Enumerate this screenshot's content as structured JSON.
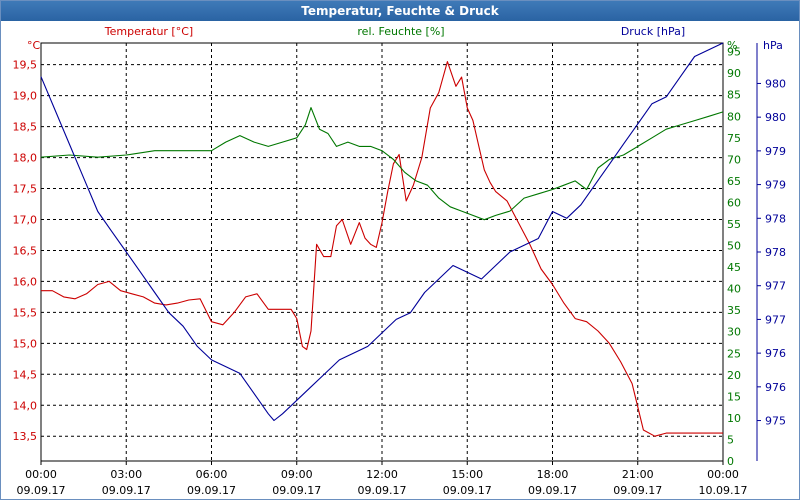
{
  "window": {
    "title": "Temperatur, Feuchte & Druck"
  },
  "chart_data": {
    "type": "line",
    "title": "Temperatur, Feuchte & Druck",
    "x_tick_times": [
      "00:00",
      "03:00",
      "06:00",
      "09:00",
      "12:00",
      "15:00",
      "18:00",
      "21:00",
      "00:00"
    ],
    "x_tick_dates": [
      "09.09.17",
      "09.09.17",
      "09.09.17",
      "09.09.17",
      "09.09.17",
      "09.09.17",
      "09.09.17",
      "09.09.17",
      "10.09.17"
    ],
    "x_hours": [
      0,
      3,
      6,
      9,
      12,
      15,
      18,
      21,
      24
    ],
    "axes": {
      "temperature": {
        "unit": "°C",
        "ylim": [
          13.1,
          19.85
        ],
        "ticks": [
          "13,5",
          "14,0",
          "14,5",
          "15,0",
          "15,5",
          "16,0",
          "16,5",
          "17,0",
          "17,5",
          "18,0",
          "18,5",
          "19,0",
          "19,5"
        ],
        "tick_values": [
          13.5,
          14,
          14.5,
          15,
          15.5,
          16,
          16.5,
          17,
          17.5,
          18,
          18.5,
          19,
          19.5
        ],
        "color": "#cc0000"
      },
      "humidity": {
        "unit": "%",
        "ylim": [
          0,
          97
        ],
        "ticks": [
          "0",
          "5",
          "10",
          "15",
          "20",
          "25",
          "30",
          "35",
          "40",
          "45",
          "50",
          "55",
          "60",
          "65",
          "70",
          "75",
          "80",
          "85",
          "90",
          "95"
        ],
        "tick_values": [
          0,
          5,
          10,
          15,
          20,
          25,
          30,
          35,
          40,
          45,
          50,
          55,
          60,
          65,
          70,
          75,
          80,
          85,
          90,
          95
        ],
        "color": "#007700"
      },
      "pressure": {
        "unit": "hPa",
        "ylim": [
          974.4,
          980.6
        ],
        "ticks": [
          "975",
          "976",
          "976",
          "977",
          "977",
          "978",
          "978",
          "979",
          "979",
          "980",
          "980"
        ],
        "tick_values": [
          975,
          975.5,
          976,
          976.5,
          977,
          977.5,
          978,
          978.5,
          979,
          979.5,
          980
        ],
        "color": "#000099"
      }
    },
    "series": [
      {
        "name": "Temperatur [°C]",
        "axis": "temperature",
        "color": "#cc0000",
        "x": [
          0,
          0.4,
          0.8,
          1.2,
          1.6,
          2.0,
          2.4,
          2.8,
          3.2,
          3.6,
          4.0,
          4.4,
          4.8,
          5.2,
          5.6,
          6.0,
          6.4,
          6.8,
          7.2,
          7.6,
          8.0,
          8.4,
          8.8,
          9.0,
          9.2,
          9.35,
          9.5,
          9.7,
          9.95,
          10.2,
          10.4,
          10.6,
          10.9,
          11.2,
          11.4,
          11.6,
          11.8,
          12.0,
          12.2,
          12.4,
          12.6,
          12.85,
          13.1,
          13.4,
          13.7,
          14.0,
          14.3,
          14.6,
          14.8,
          15.0,
          15.2,
          15.4,
          15.6,
          15.8,
          16.0,
          16.4,
          16.8,
          17.2,
          17.6,
          18.0,
          18.4,
          18.8,
          19.2,
          19.6,
          20.0,
          20.4,
          20.8,
          21.2,
          21.6,
          22.0,
          22.4,
          22.8,
          23.1,
          23.4,
          23.7,
          24.0
        ],
        "y": [
          15.85,
          15.85,
          15.75,
          15.72,
          15.8,
          15.95,
          16.0,
          15.85,
          15.8,
          15.75,
          15.65,
          15.62,
          15.65,
          15.7,
          15.72,
          15.35,
          15.3,
          15.5,
          15.75,
          15.8,
          15.55,
          15.55,
          15.55,
          15.4,
          14.95,
          14.9,
          15.2,
          16.6,
          16.4,
          16.4,
          16.9,
          17.0,
          16.6,
          16.95,
          16.7,
          16.6,
          16.55,
          16.95,
          17.45,
          17.9,
          18.05,
          17.3,
          17.55,
          18.0,
          18.8,
          19.05,
          19.55,
          19.15,
          19.3,
          18.8,
          18.6,
          18.2,
          17.8,
          17.6,
          17.45,
          17.3,
          16.95,
          16.6,
          16.2,
          15.95,
          15.65,
          15.4,
          15.35,
          15.2,
          15.0,
          14.7,
          14.35,
          13.6,
          13.5,
          13.55,
          13.55,
          13.55,
          13.55,
          13.55,
          13.55,
          13.55
        ]
      },
      {
        "name": "rel. Feuchte [%]",
        "axis": "humidity",
        "color": "#007700",
        "x": [
          0,
          1,
          2,
          3,
          4,
          5,
          6,
          6.5,
          7,
          7.5,
          8,
          8.5,
          9,
          9.3,
          9.5,
          9.8,
          10.1,
          10.4,
          10.8,
          11.2,
          11.6,
          12.0,
          12.4,
          12.8,
          13.2,
          13.6,
          14.0,
          14.4,
          14.8,
          15.2,
          15.6,
          16.0,
          16.5,
          17.0,
          17.5,
          18.0,
          18.4,
          18.8,
          19.2,
          19.6,
          20.0,
          20.5,
          21.0,
          21.5,
          22.0,
          22.5,
          23.0,
          23.5,
          24.0
        ],
        "y": [
          70.5,
          71,
          70.5,
          71,
          72,
          72,
          72,
          74,
          75.5,
          74,
          73,
          74,
          75,
          78,
          82,
          77,
          76,
          73,
          74,
          73,
          73,
          72,
          70,
          67,
          65,
          64,
          61,
          59,
          58,
          57,
          56,
          57,
          58,
          61,
          62,
          63,
          64,
          65,
          63,
          68,
          70,
          71,
          73,
          75,
          77,
          78,
          79,
          80,
          81
        ]
      },
      {
        "name": "Druck [hPa]",
        "axis": "pressure",
        "color": "#000099",
        "x": [
          0,
          0.5,
          1,
          1.5,
          2,
          2.5,
          3,
          3.5,
          4,
          4.5,
          5,
          5.5,
          6,
          6.5,
          7,
          7.5,
          8,
          8.2,
          8.5,
          9,
          9.5,
          10,
          10.5,
          11,
          11.5,
          12,
          12.5,
          13,
          13.5,
          14,
          14.5,
          15,
          15.5,
          16,
          16.5,
          17,
          17.5,
          18,
          18.5,
          19,
          19.5,
          20,
          20.5,
          21,
          21.5,
          22,
          22.5,
          23,
          23.5,
          24
        ],
        "y": [
          980.1,
          979.6,
          979.1,
          978.6,
          978.1,
          977.8,
          977.5,
          977.2,
          976.9,
          976.6,
          976.4,
          976.1,
          975.9,
          975.8,
          975.7,
          975.4,
          975.1,
          975.0,
          975.1,
          975.3,
          975.5,
          975.7,
          975.9,
          976.0,
          976.1,
          976.3,
          976.5,
          976.6,
          976.9,
          977.1,
          977.3,
          977.2,
          977.1,
          977.3,
          977.5,
          977.6,
          977.7,
          978.1,
          978.0,
          978.2,
          978.5,
          978.8,
          979.1,
          979.4,
          979.7,
          979.8,
          980.1,
          980.4,
          980.5,
          980.6
        ]
      }
    ]
  }
}
